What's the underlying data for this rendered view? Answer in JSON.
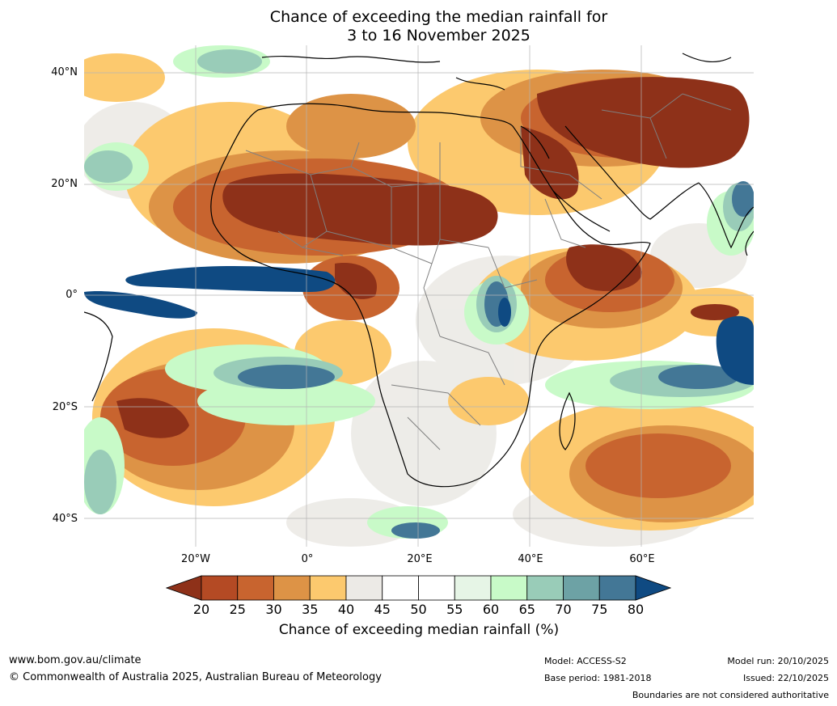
{
  "title": {
    "line1": "Chance of exceeding the median rainfall for",
    "line2": "3 to 16 November 2025"
  },
  "map": {
    "lat_labels": [
      "40°N",
      "20°N",
      "0°",
      "20°S",
      "40°S"
    ],
    "lon_labels": [
      "20°W",
      "0°",
      "20°E",
      "40°E",
      "60°E"
    ],
    "colors": {
      "very_dry": "#8e3119",
      "dry": "#b44a24",
      "mod_dry": "#c8642f",
      "light_dry": "#dd9346",
      "slight_dry": "#fcc96e",
      "neutral_grey": "#eceae6",
      "white": "#ffffff",
      "slight_wet": "#e6f5e6",
      "light_wet": "#c8fac8",
      "mod_wet": "#99ccb8",
      "wet": "#6da2a5",
      "very_wet": "#437796",
      "extreme_wet": "#0f4a82",
      "coast": "#000000",
      "border": "#808080",
      "grid": "#b4b4b4"
    }
  },
  "colorbar": {
    "ticks": [
      "20",
      "25",
      "30",
      "35",
      "40",
      "45",
      "50",
      "55",
      "60",
      "65",
      "70",
      "75",
      "80"
    ],
    "colors": [
      "#8e3119",
      "#b44a24",
      "#c8642f",
      "#dd9346",
      "#fcc96e",
      "#eceae6",
      "#ffffff",
      "#ffffff",
      "#e6f5e6",
      "#c8fac8",
      "#99ccb8",
      "#6da2a5",
      "#437796",
      "#0f4a82"
    ],
    "label": "Chance of exceeding median rainfall (%)"
  },
  "footer": {
    "website": "www.bom.gov.au/climate",
    "copyright": "© Commonwealth of Australia 2025, Australian Bureau of Meteorology",
    "model": "Model: ACCESS-S2",
    "base_period": "Base period: 1981-2018",
    "model_run": "Model run: 20/10/2025",
    "issued": "Issued: 22/10/2025",
    "disclaimer": "Boundaries are not considered authoritative"
  }
}
